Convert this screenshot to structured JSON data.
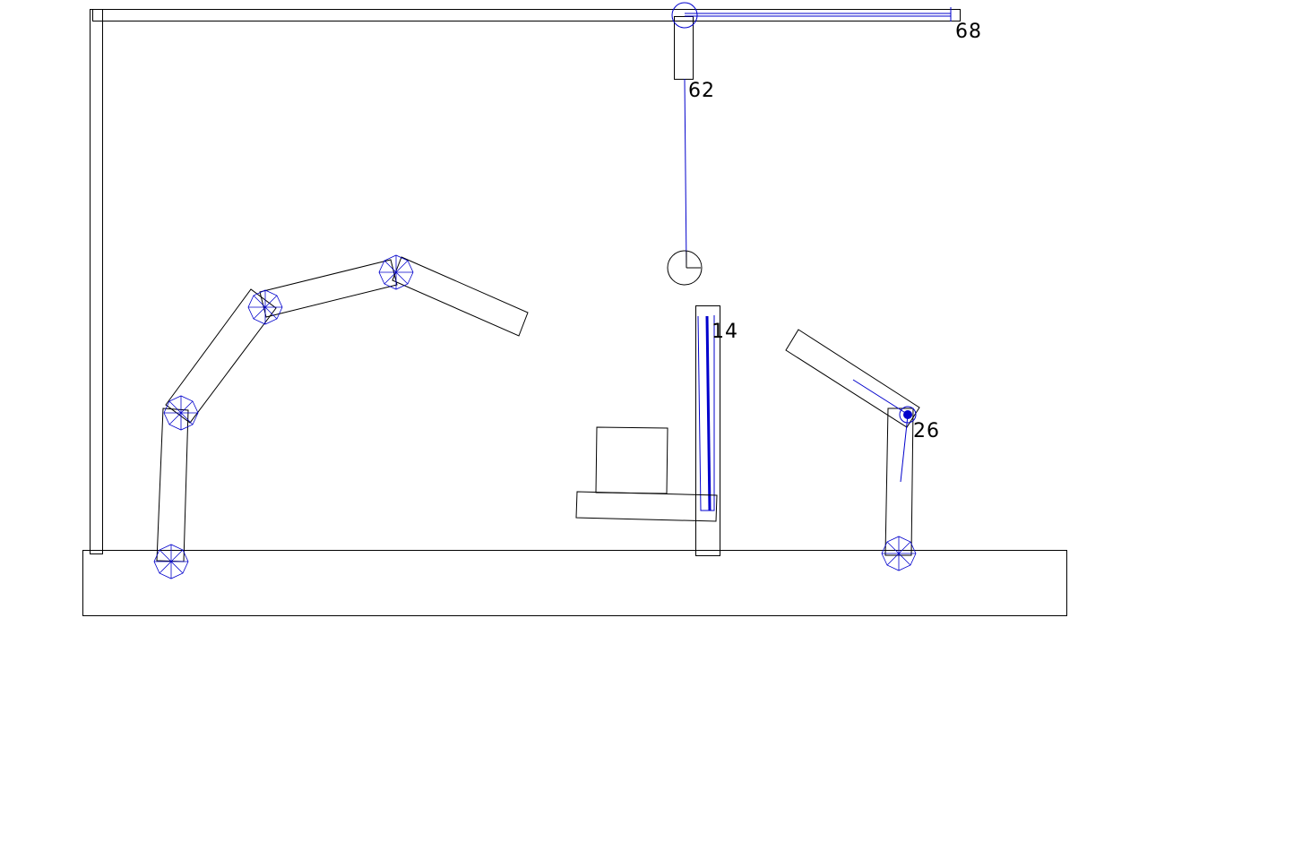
{
  "colors": {
    "outline": "#000000",
    "wire": "#0000cc",
    "background": "#ffffff"
  },
  "labels": {
    "crane_end": "68",
    "crane_hanger": "62",
    "center_post": "14",
    "right_arm_joint": "26"
  }
}
